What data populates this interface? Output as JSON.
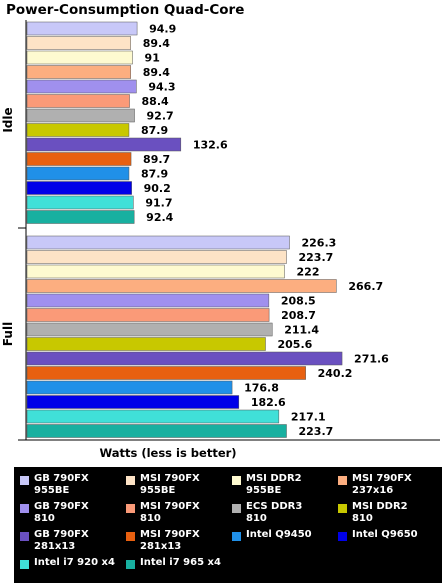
{
  "chart_data": {
    "type": "bar",
    "orientation": "horizontal",
    "title": "Power-Consumption Quad-Core",
    "xlabel": "Watts (less is better)",
    "ylabel": "",
    "xlim": [
      0,
      300
    ],
    "grid": false,
    "legend_position": "bottom",
    "groups": [
      "Idle",
      "Full"
    ],
    "series": [
      {
        "name": "GB 790FX 955BE",
        "color": "#c8c8f8",
        "values": [
          94.9,
          226.3
        ]
      },
      {
        "name": "MSI 790FX 955BE",
        "color": "#fde3c6",
        "values": [
          89.4,
          223.7
        ]
      },
      {
        "name": "MSI DDR2 955BE",
        "color": "#fefad0",
        "values": [
          91,
          222
        ]
      },
      {
        "name": "MSI 790FX 237x16",
        "color": "#fcae80",
        "values": [
          89.4,
          266.7
        ]
      },
      {
        "name": "GB 790FX 810",
        "color": "#a090ee",
        "values": [
          94.3,
          208.5
        ]
      },
      {
        "name": "MSI 790FX 810",
        "color": "#fa9a78",
        "values": [
          88.4,
          208.7
        ]
      },
      {
        "name": "ECS DDR3 810",
        "color": "#b0b0b0",
        "values": [
          92.7,
          211.4
        ]
      },
      {
        "name": "MSI DDR2 810",
        "color": "#c8c800",
        "values": [
          87.9,
          205.6
        ]
      },
      {
        "name": "GB 790FX 281x13",
        "color": "#6a50c0",
        "values": [
          132.6,
          271.6
        ]
      },
      {
        "name": "MSI 790FX 281x13",
        "color": "#e86010",
        "values": [
          89.7,
          240.2
        ]
      },
      {
        "name": "Intel Q9450",
        "color": "#2090e8",
        "values": [
          87.9,
          176.8
        ]
      },
      {
        "name": "Intel Q9650",
        "color": "#0000e8",
        "values": [
          90.2,
          182.6
        ]
      },
      {
        "name": "Intel i7 920 x4",
        "color": "#40e0d8",
        "values": [
          91.7,
          217.1
        ]
      },
      {
        "name": "Intel i7 965 x4",
        "color": "#18b0a0",
        "values": [
          92.4,
          223.7
        ]
      }
    ]
  },
  "legend": {
    "items": [
      {
        "line1": "GB 790FX",
        "line2": "955BE"
      },
      {
        "line1": "MSI 790FX",
        "line2": "955BE"
      },
      {
        "line1": "MSI DDR2",
        "line2": "955BE"
      },
      {
        "line1": "MSI 790FX",
        "line2": "237x16"
      },
      {
        "line1": "GB 790FX",
        "line2": "810"
      },
      {
        "line1": "MSI 790FX",
        "line2": "810"
      },
      {
        "line1": "ECS DDR3",
        "line2": "810"
      },
      {
        "line1": "MSI DDR2",
        "line2": "810"
      },
      {
        "line1": "GB 790FX",
        "line2": "281x13"
      },
      {
        "line1": "MSI 790FX",
        "line2": "281x13"
      },
      {
        "line1": "Intel Q9450",
        "line2": ""
      },
      {
        "line1": "Intel Q9650",
        "line2": ""
      },
      {
        "line1": "Intel i7 920 x4",
        "line2": ""
      },
      {
        "line1": "Intel i7 965 x4",
        "line2": ""
      }
    ]
  }
}
